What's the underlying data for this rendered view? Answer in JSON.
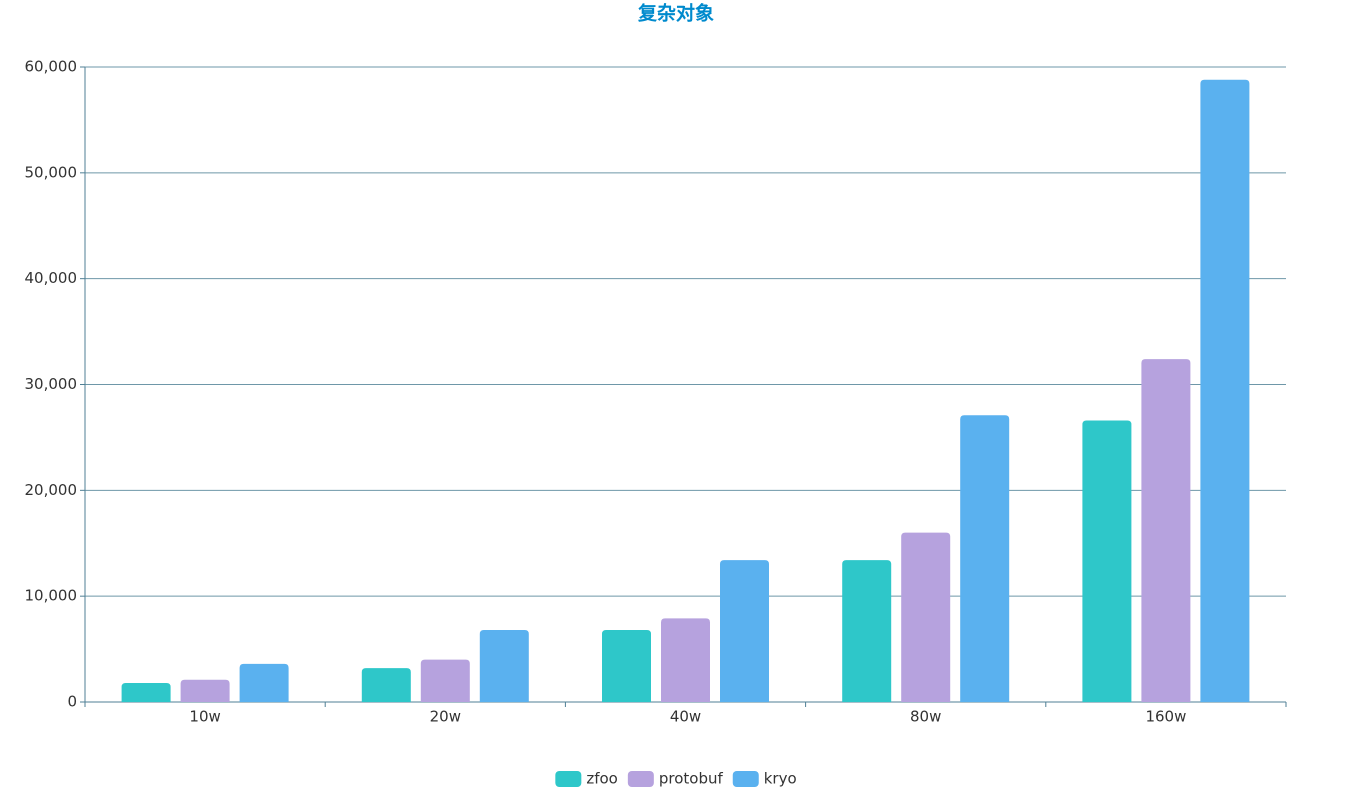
{
  "chart_data": {
    "type": "bar",
    "title": "复杂对象",
    "categories": [
      "10w",
      "20w",
      "40w",
      "80w",
      "160w"
    ],
    "series": [
      {
        "name": "zfoo",
        "color": "#2ec7c9",
        "values": [
          1800,
          3200,
          6800,
          13400,
          26600
        ]
      },
      {
        "name": "protobuf",
        "color": "#b6a2de",
        "values": [
          2100,
          4000,
          7900,
          16000,
          32400
        ]
      },
      {
        "name": "kryo",
        "color": "#5ab1ef",
        "values": [
          3600,
          6800,
          13400,
          27100,
          58800
        ]
      }
    ],
    "ylim": [
      0,
      60000
    ],
    "yticks": [
      0,
      {
        "value": 10000,
        "label": "10,000"
      },
      {
        "value": 20000,
        "label": "20,000"
      },
      {
        "value": 30000,
        "label": "30,000"
      },
      {
        "value": 40000,
        "label": "40,000"
      },
      {
        "value": 50000,
        "label": "50,000"
      },
      {
        "value": 60000,
        "label": "60,000"
      }
    ],
    "grid": true,
    "legend": "bottom"
  }
}
